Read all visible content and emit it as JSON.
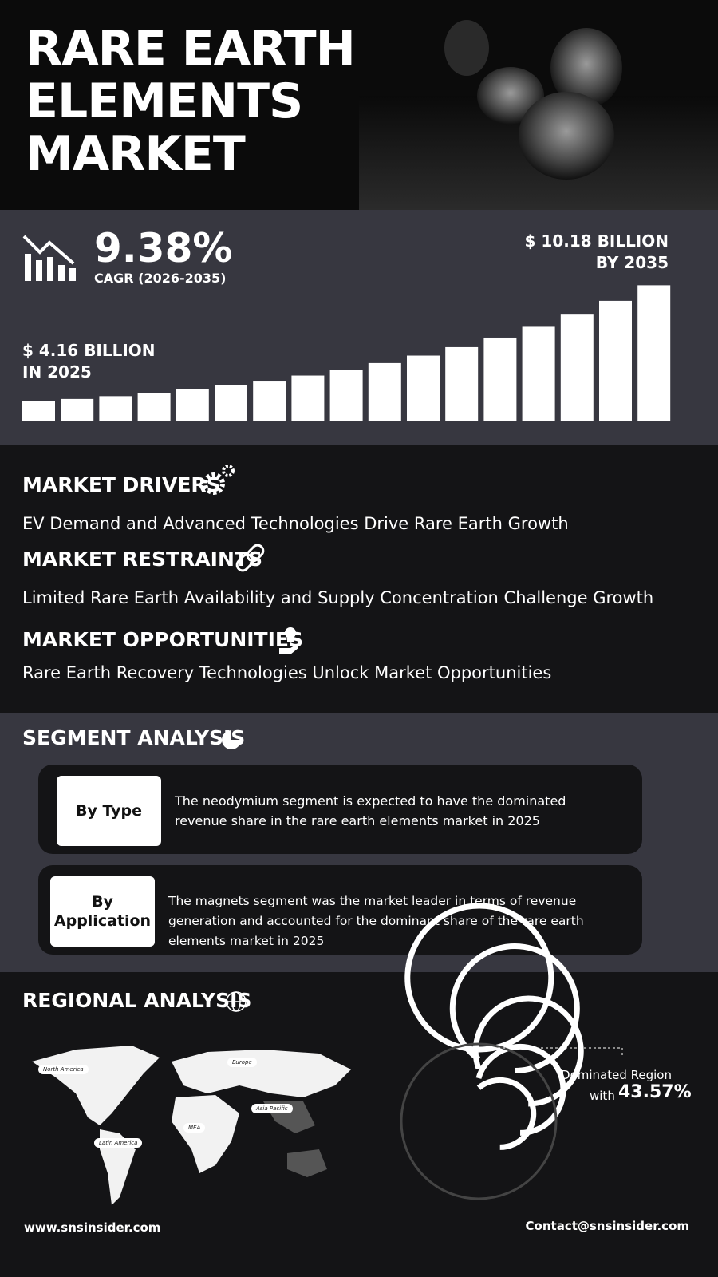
{
  "header": {
    "title": "RARE EARTH ELEMENTS MARKET"
  },
  "stats": {
    "cagr": "9.38%",
    "cagr_label": "CAGR (2026-2035)",
    "end_value": "$ 10.18 BILLION",
    "end_year": "BY 2035",
    "start_value": "$ 4.16 BILLION",
    "start_year": "IN 2025"
  },
  "dynamics": [
    {
      "heading": "MARKET DRIVERS",
      "text": "EV Demand and Advanced Technologies Drive Rare Earth Growth"
    },
    {
      "heading": "MARKET RESTRAINTS",
      "text": "Limited Rare Earth Availability and Supply Concentration Challenge Growth"
    },
    {
      "heading": "MARKET OPPORTUNITIES",
      "text": "Rare Earth Recovery Technologies Unlock Market Opportunities"
    }
  ],
  "segment": {
    "heading": "SEGMENT ANALYSIS",
    "items": [
      {
        "label": "By Type",
        "text": "The neodymium segment is expected to have the dominated revenue share in the rare earth elements market in 2025"
      },
      {
        "label": "By Application",
        "text": "The magnets segment was the market leader in terms of revenue generation and accounted for the dominant share of the rare earth elements market in 2025"
      }
    ]
  },
  "regional": {
    "heading": "REGIONAL ANALYSIS",
    "map_labels": [
      "North America",
      "Europe",
      "Asia Pacific",
      "MEA",
      "Latin America"
    ],
    "dominated_label": "Dominated Region",
    "with": "with",
    "share": "43.57%"
  },
  "footer": {
    "website": "www.snsinsider.com",
    "contact": "Contact@snsinsider.com"
  }
}
